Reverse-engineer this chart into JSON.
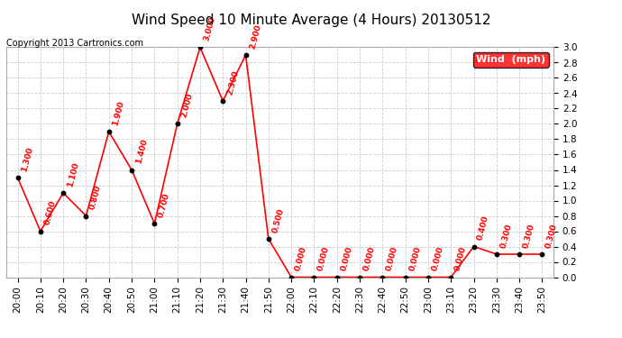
{
  "title": "Wind Speed 10 Minute Average (4 Hours) 20130512",
  "copyright": "Copyright 2013 Cartronics.com",
  "legend_label": "Wind  (mph)",
  "x_labels": [
    "20:00",
    "20:10",
    "20:20",
    "20:30",
    "20:40",
    "20:50",
    "21:00",
    "21:10",
    "21:20",
    "21:30",
    "21:40",
    "21:50",
    "22:00",
    "22:10",
    "22:20",
    "22:30",
    "22:40",
    "22:50",
    "23:00",
    "23:10",
    "23:20",
    "23:30",
    "23:40",
    "23:50"
  ],
  "wind_values": [
    1.3,
    0.6,
    1.1,
    0.8,
    1.9,
    1.4,
    0.7,
    2.0,
    3.0,
    2.3,
    2.9,
    0.5,
    0.0,
    0.0,
    0.0,
    0.0,
    0.0,
    0.0,
    0.0,
    0.0,
    0.4,
    0.3,
    0.3,
    0.3
  ],
  "wind_label_values": [
    "1.300",
    "0.600",
    "1.100",
    "0.800",
    "1.900",
    "1.400",
    "0.700",
    "2.000",
    "3.000",
    "2.300",
    "2.900",
    "0.500",
    "0.000",
    "0.000",
    "0.000",
    "0.000",
    "0.000",
    "0.000",
    "0.000",
    "0.000",
    "0.400",
    "0.300",
    "0.300",
    "0.300"
  ],
  "line_color": "red",
  "marker_color": "black",
  "label_color": "red",
  "legend_bg": "red",
  "legend_fg": "white",
  "ylim": [
    0.0,
    3.0
  ],
  "yticks": [
    0.0,
    0.2,
    0.4,
    0.6,
    0.8,
    1.0,
    1.2,
    1.4,
    1.6,
    1.8,
    2.0,
    2.2,
    2.4,
    2.6,
    2.8,
    3.0
  ],
  "bg_color": "white",
  "grid_color": "#cccccc",
  "title_fontsize": 11,
  "label_fontsize": 6.5,
  "tick_fontsize": 7.5,
  "copyright_fontsize": 7
}
